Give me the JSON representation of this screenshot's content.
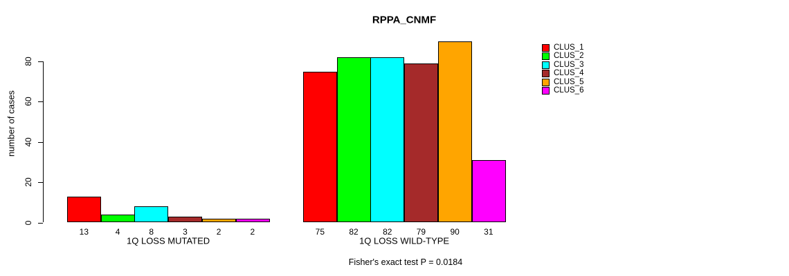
{
  "chart_data": {
    "type": "bar",
    "title": "RPPA_CNMF",
    "ylabel": "number of cases",
    "xlabel": "",
    "ylim": [
      0,
      90
    ],
    "yticks": [
      0,
      20,
      40,
      60,
      80
    ],
    "grid": false,
    "legend_position": "right",
    "series": [
      {
        "name": "CLUS_1",
        "color": "#FF0000"
      },
      {
        "name": "CLUS_2",
        "color": "#00FF00"
      },
      {
        "name": "CLUS_3",
        "color": "#00FFFF"
      },
      {
        "name": "CLUS_4",
        "color": "#A52A2A"
      },
      {
        "name": "CLUS_5",
        "color": "#FFA500"
      },
      {
        "name": "CLUS_6",
        "color": "#FF00FF"
      }
    ],
    "groups": [
      {
        "label": "1Q LOSS MUTATED",
        "values": [
          13,
          4,
          8,
          3,
          2,
          2
        ]
      },
      {
        "label": "1Q LOSS WILD-TYPE",
        "values": [
          75,
          82,
          82,
          79,
          90,
          31
        ]
      }
    ],
    "annotation": "Fisher's exact test P = 0.0184"
  }
}
